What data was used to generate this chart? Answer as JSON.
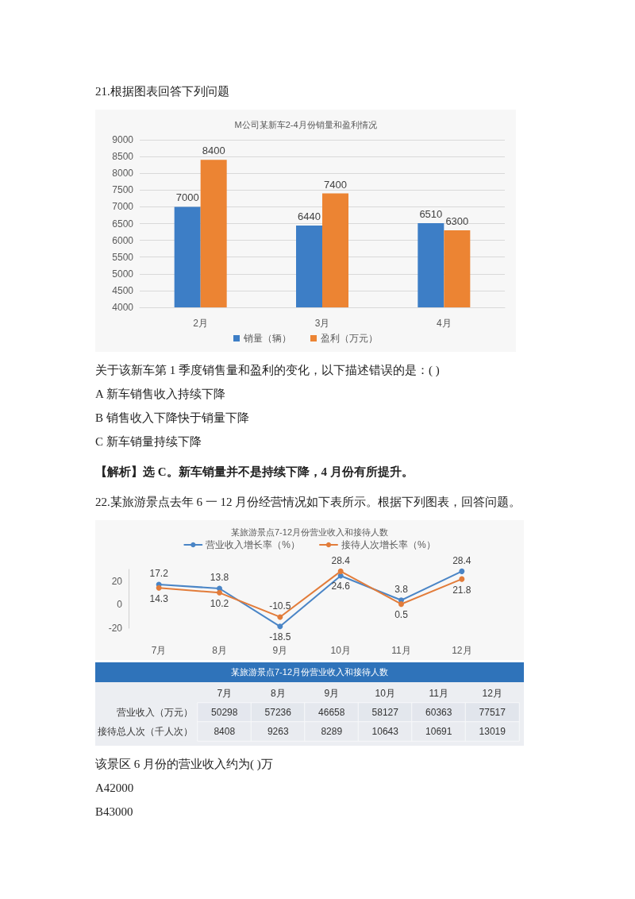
{
  "chart_data": [
    {
      "type": "other",
      "annotations": [
        "21.根据图表回答下列问题"
      ]
    },
    {
      "type": "bar",
      "title": "M公司某新车2-4月份销量和盈利情况",
      "categories": [
        "2月",
        "3月",
        "4月"
      ],
      "series": [
        {
          "name": "销量（辆）",
          "color": "#3d7ec6",
          "values": [
            7000,
            6440,
            6510
          ]
        },
        {
          "name": "盈利（万元）",
          "color": "#ec8433",
          "values": [
            8400,
            7400,
            6300
          ]
        }
      ],
      "ylim": [
        4000,
        9000
      ],
      "yticks": [
        4000,
        4500,
        5000,
        5500,
        6000,
        6500,
        7000,
        7500,
        8000,
        8500,
        9000
      ],
      "grid": "y",
      "legend": "bottom",
      "data_labels": true
    },
    {
      "type": "other",
      "annotations": [
        "关于该新车第 1 季度销售量和盈利的变化，以下描述错误的是：( )",
        "A 新车销售收入持续下降",
        "B 销售收入下降快于销量下降",
        "C 新车销量持续下降"
      ]
    },
    {
      "type": "other",
      "title": "【解析】选 C。新车销量并不是持续下降，4 月份有所提升。"
    },
    {
      "type": "other",
      "annotations": [
        "22.某旅游景点去年 6 一 12 月份经营情况如下表所示。根据下列图表，回答问题。"
      ]
    },
    {
      "type": "line",
      "title": "某旅游景点7-12月份营业收入和接待人数",
      "categories": [
        "7月",
        "8月",
        "9月",
        "10月",
        "11月",
        "12月"
      ],
      "series": [
        {
          "name": "营业收入增长率（%）",
          "color": "#4a85c6",
          "values": [
            17.2,
            13.8,
            -18.5,
            24.6,
            3.8,
            28.4
          ]
        },
        {
          "name": "接待人次增长率（%）",
          "color": "#e27c3a",
          "values": [
            14.3,
            10.2,
            -10.5,
            28.4,
            0.5,
            21.8
          ]
        }
      ],
      "ylim": [
        -20,
        30
      ],
      "yticks": [
        -20,
        0,
        20
      ],
      "legend": "top",
      "data_labels": true,
      "marker": "circle"
    },
    {
      "type": "heatmap",
      "title": "某旅游景点7-12月份营业收入和接待人数",
      "categories": [
        "7月",
        "8月",
        "9月",
        "10月",
        "11月",
        "12月"
      ],
      "y_categories": [
        "营业收入（万元）",
        "接待总人次（千人次）"
      ],
      "cells": [
        [
          50298,
          57236,
          46658,
          58127,
          60363,
          77517
        ],
        [
          8408,
          9263,
          8289,
          10643,
          10691,
          13019
        ]
      ],
      "data_labels": true
    },
    {
      "type": "other",
      "annotations": [
        "该景区 6 月份的营业收入约为( )万",
        "A42000",
        "B43000"
      ]
    }
  ]
}
